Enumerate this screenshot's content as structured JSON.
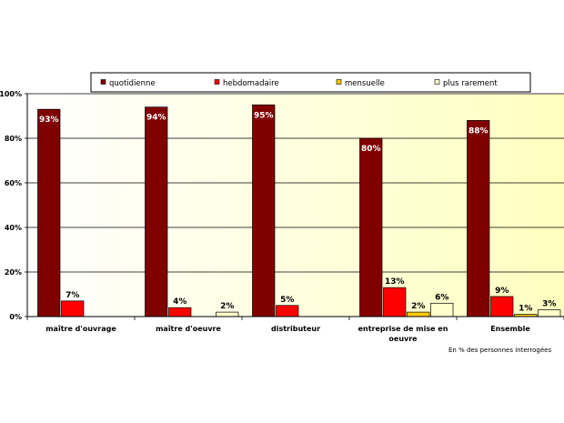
{
  "chart_data": {
    "type": "bar",
    "categories": [
      "maître d'ouvrage",
      "maître d'oeuvre",
      "distributeur",
      "entreprise de mise en oeuvre",
      "Ensemble"
    ],
    "category_lines": [
      [
        "maître d'ouvrage"
      ],
      [
        "maître d'oeuvre"
      ],
      [
        "distributeur"
      ],
      [
        "entreprise de mise en",
        "oeuvre"
      ],
      [
        "Ensemble"
      ]
    ],
    "series": [
      {
        "name": "quotidienne",
        "color": "#800000",
        "values": [
          93,
          94,
          95,
          80,
          88
        ],
        "labels": [
          "93%",
          "94%",
          "95%",
          "80%",
          "88%"
        ]
      },
      {
        "name": "hebdomadaire",
        "color": "#ff0000",
        "values": [
          7,
          4,
          5,
          13,
          9
        ],
        "labels": [
          "7%",
          "4%",
          "5%",
          "13%",
          "9%"
        ]
      },
      {
        "name": "mensuelle",
        "color": "#ffcc00",
        "values": [
          0,
          0,
          0,
          2,
          1
        ],
        "labels": [
          "",
          "",
          "",
          "2%",
          "1%"
        ]
      },
      {
        "name": "plus rarement",
        "color": "#ffffcc",
        "values": [
          0,
          2,
          0,
          6,
          3
        ],
        "labels": [
          "",
          "2%",
          "",
          "6%",
          "3%"
        ]
      }
    ],
    "ylim": [
      0,
      100
    ],
    "yticks": [
      0,
      20,
      40,
      60,
      80,
      100
    ],
    "ytick_labels": [
      "0%",
      "20%",
      "40%",
      "60%",
      "80%",
      "100%"
    ],
    "grid": true,
    "legend_position": "top",
    "note": "En % des personnes interrogées",
    "plot_background": [
      "#ffffff",
      "#ffffc0"
    ]
  }
}
